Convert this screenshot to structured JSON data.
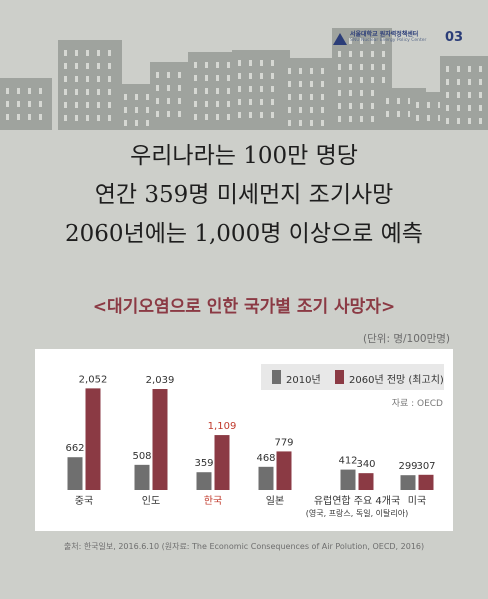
{
  "header": {
    "logo_ko": "서울대학교 원자력정책센터",
    "logo_en": "SNU Nuclear Energy Policy Center",
    "page_number": "03"
  },
  "headline": {
    "line1": "우리나라는 100만 명당",
    "line2": "연간 359명 미세먼지 조기사망",
    "line3": "2060년에는 1,000명 이상으로 예측"
  },
  "footer": {
    "source": "출처: 한국일보, 2016.6.10 (원자료: The Economic Consequences of Air Polution, OECD, 2016)"
  },
  "chart_data": {
    "type": "bar",
    "title": "<대기오염으로 인한 국가별 조기 사망자>",
    "unit": "(단위: 명/100만명)",
    "source_note": "자료 : OECD",
    "categories": [
      "중국",
      "인도",
      "한국",
      "일본",
      "유럽연합 주요 4개국",
      "미국"
    ],
    "category_subtitles": [
      "",
      "",
      "",
      "",
      "(영국, 프랑스, 독일, 이탈리아)",
      ""
    ],
    "highlight_category": "한국",
    "series": [
      {
        "name": "2010년",
        "values": [
          662,
          508,
          359,
          468,
          412,
          299
        ],
        "labels": [
          "662",
          "508",
          "359",
          "468",
          "412",
          "299"
        ],
        "color": "#6f6f6f"
      },
      {
        "name": "2060년 전망 (최고치)",
        "values": [
          2052,
          2039,
          1109,
          779,
          340,
          307
        ],
        "labels": [
          "2,052",
          "2,039",
          "1,109",
          "779",
          "340",
          "307"
        ],
        "color": "#8b3a44"
      }
    ],
    "ylim": [
      0,
      2100
    ],
    "legend": "top-right",
    "grid": false,
    "colors": {
      "highlight": "#c0392b",
      "label": "#333333"
    }
  }
}
